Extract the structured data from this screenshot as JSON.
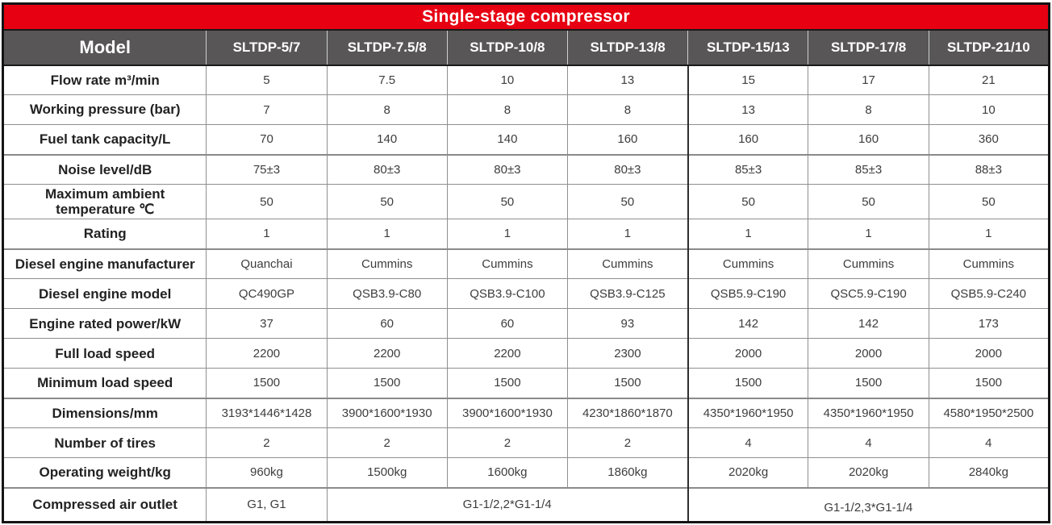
{
  "title": "Single-stage compressor",
  "colors": {
    "title_bg": "#e60012",
    "title_text": "#ffffff",
    "header_bg": "#585656",
    "header_text": "#ffffff",
    "label_text": "#222222",
    "value_text": "#3d3d3d",
    "outer_border": "#141414",
    "inner_border": "#8f8f8f"
  },
  "table": {
    "model_label": "Model",
    "models": [
      "SLTDP-5/7",
      "SLTDP-7.5/8",
      "SLTDP-10/8",
      "SLTDP-13/8",
      "SLTDP-15/13",
      "SLTDP-17/8",
      "SLTDP-21/10"
    ],
    "rows": [
      {
        "label": "Flow rate m³/min",
        "values": [
          "5",
          "7.5",
          "10",
          "13",
          "15",
          "17",
          "21"
        ]
      },
      {
        "label": "Working pressure (bar)",
        "values": [
          "7",
          "8",
          "8",
          "8",
          "13",
          "8",
          "10"
        ]
      },
      {
        "label": "Fuel tank capacity/L",
        "values": [
          "70",
          "140",
          "140",
          "160",
          "160",
          "160",
          "360"
        ]
      },
      {
        "label": "Noise level/dB",
        "values": [
          "75±3",
          "80±3",
          "80±3",
          "80±3",
          "85±3",
          "85±3",
          "88±3"
        ]
      },
      {
        "label": "Maximum ambient temperature ℃",
        "values": [
          "50",
          "50",
          "50",
          "50",
          "50",
          "50",
          "50"
        ]
      },
      {
        "label": "Rating",
        "values": [
          "1",
          "1",
          "1",
          "1",
          "1",
          "1",
          "1"
        ]
      },
      {
        "label": "Diesel engine manufacturer",
        "values": [
          "Quanchai",
          "Cummins",
          "Cummins",
          "Cummins",
          "Cummins",
          "Cummins",
          "Cummins"
        ]
      },
      {
        "label": "Diesel engine model",
        "values": [
          "QC490GP",
          "QSB3.9-C80",
          "QSB3.9-C100",
          "QSB3.9-C125",
          "QSB5.9-C190",
          "QSC5.9-C190",
          "QSB5.9-C240"
        ]
      },
      {
        "label": "Engine rated power/kW",
        "values": [
          "37",
          "60",
          "60",
          "93",
          "142",
          "142",
          "173"
        ]
      },
      {
        "label": "Full load speed",
        "values": [
          "2200",
          "2200",
          "2200",
          "2300",
          "2000",
          "2000",
          "2000"
        ]
      },
      {
        "label": "Minimum load speed",
        "values": [
          "1500",
          "1500",
          "1500",
          "1500",
          "1500",
          "1500",
          "1500"
        ]
      },
      {
        "label": "Dimensions/mm",
        "values": [
          "3193*1446*1428",
          "3900*1600*1930",
          "3900*1600*1930",
          "4230*1860*1870",
          "4350*1960*1950",
          "4350*1960*1950",
          "4580*1950*2500"
        ]
      },
      {
        "label": "Number of tires",
        "values": [
          "2",
          "2",
          "2",
          "2",
          "4",
          "4",
          "4"
        ]
      },
      {
        "label": "Operating weight/kg",
        "values": [
          "960kg",
          "1500kg",
          "1600kg",
          "1860kg",
          "2020kg",
          "2020kg",
          "2840kg"
        ]
      }
    ],
    "outlet_row": {
      "label": "Compressed air outlet",
      "cells": [
        {
          "text": "G1,  G1",
          "span": 1
        },
        {
          "text": "G1-1/2,2*G1-1/4",
          "span": 3
        },
        {
          "text": "G1-1/2,3*G1-1/4",
          "span": 3
        }
      ]
    }
  }
}
